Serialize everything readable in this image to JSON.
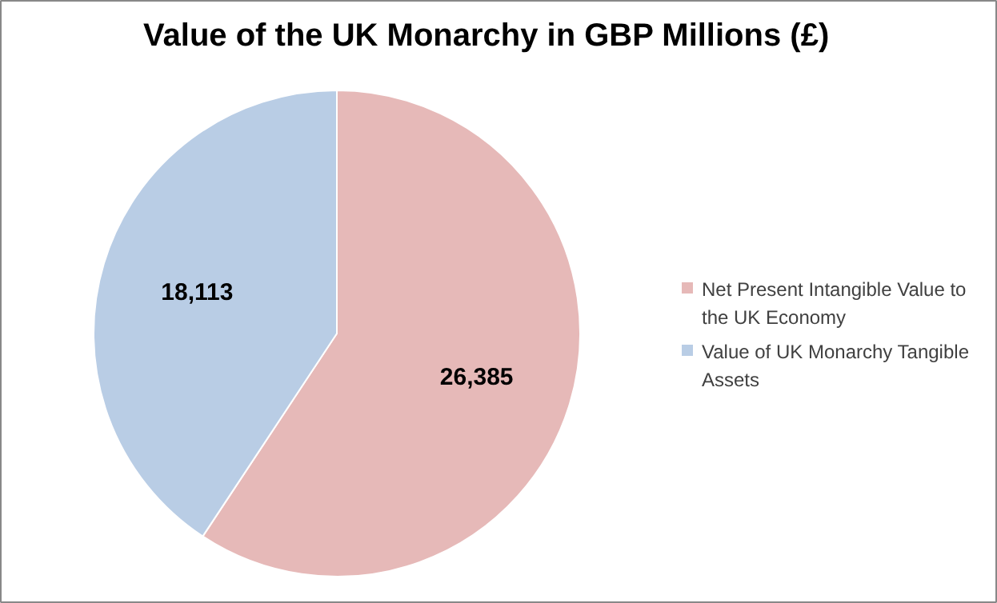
{
  "chart_data": {
    "type": "pie",
    "title": "Value of the UK Monarchy in GBP Millions (£)",
    "categories": [
      "Net Present Intangible Value to the UK Economy",
      "Value of UK Monarchy Tangible Assets"
    ],
    "values": [
      26385,
      18113
    ],
    "colors": [
      "#e6b9b8",
      "#b9cde5"
    ],
    "value_labels": [
      "26,385",
      "18,113"
    ],
    "legend": "right"
  }
}
